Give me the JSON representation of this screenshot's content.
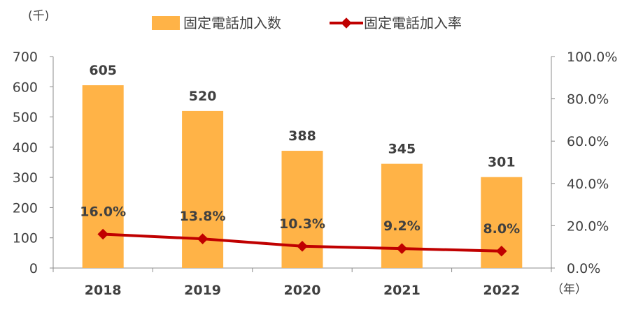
{
  "chart_data": {
    "type": "bar",
    "categories": [
      "2018",
      "2019",
      "2020",
      "2021",
      "2022"
    ],
    "series": [
      {
        "name": "固定電話加入数",
        "type": "bar",
        "axis": "left",
        "values": [
          605,
          520,
          388,
          345,
          301
        ],
        "labels": [
          "605",
          "520",
          "388",
          "345",
          "301"
        ],
        "color": "#FFB347"
      },
      {
        "name": "固定電話加入率",
        "type": "line",
        "axis": "right",
        "values": [
          16.0,
          13.8,
          10.3,
          9.2,
          8.0
        ],
        "labels": [
          "16.0%",
          "13.8%",
          "10.3%",
          "9.2%",
          "8.0%"
        ],
        "color": "#C00000"
      }
    ],
    "y_left": {
      "unit_label": "(千)",
      "range": [
        0,
        700
      ],
      "ticks": [
        0,
        100,
        200,
        300,
        400,
        500,
        600,
        700
      ],
      "tick_labels": [
        "0",
        "100",
        "200",
        "300",
        "400",
        "500",
        "600",
        "700"
      ]
    },
    "y_right": {
      "range": [
        0,
        100
      ],
      "ticks": [
        0,
        20,
        40,
        60,
        80,
        100
      ],
      "tick_labels": [
        "0.0%",
        "20.0%",
        "40.0%",
        "60.0%",
        "80.0%",
        "100.0%"
      ]
    },
    "x_unit_label": "（年）",
    "legend_position": "top",
    "grid": false
  }
}
